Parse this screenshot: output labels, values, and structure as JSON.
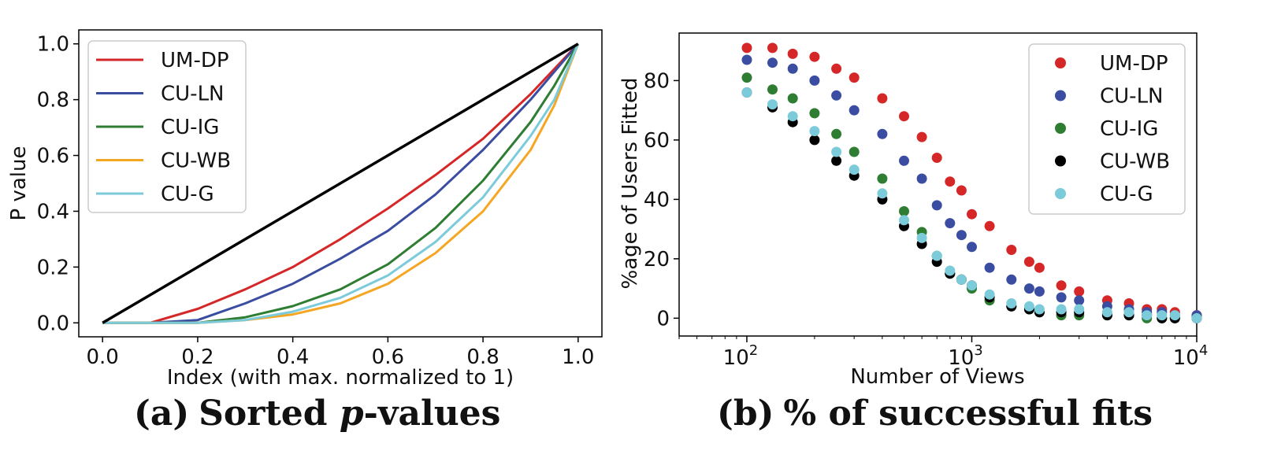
{
  "chart_data": [
    {
      "type": "line",
      "caption": {
        "tag": "(a)",
        "pre": "Sorted ",
        "var": "p",
        "post": "-values"
      },
      "xlabel": "Index (with max. normalized to 1)",
      "ylabel": "P value",
      "xlim": [
        -0.05,
        1.05
      ],
      "ylim": [
        -0.05,
        1.05
      ],
      "xticks": [
        "0.0",
        "0.2",
        "0.4",
        "0.6",
        "0.8",
        "1.0"
      ],
      "yticks": [
        "0.0",
        "0.2",
        "0.4",
        "0.6",
        "0.8",
        "1.0"
      ],
      "legend": "top-left",
      "series": [
        {
          "name": "UM-DP",
          "color": "#d62728",
          "x": [
            0,
            0.1,
            0.2,
            0.3,
            0.4,
            0.5,
            0.6,
            0.7,
            0.8,
            0.9,
            0.95,
            1.0
          ],
          "values": [
            0,
            0,
            0.05,
            0.12,
            0.2,
            0.3,
            0.41,
            0.53,
            0.66,
            0.82,
            0.91,
            1.0
          ]
        },
        {
          "name": "CU-LN",
          "color": "#3a4da0",
          "x": [
            0,
            0.1,
            0.2,
            0.3,
            0.4,
            0.5,
            0.6,
            0.7,
            0.8,
            0.9,
            0.95,
            1.0
          ],
          "values": [
            0,
            0,
            0.01,
            0.07,
            0.14,
            0.23,
            0.33,
            0.46,
            0.62,
            0.8,
            0.9,
            1.0
          ]
        },
        {
          "name": "CU-IG",
          "color": "#2e7d32",
          "x": [
            0,
            0.1,
            0.2,
            0.3,
            0.4,
            0.5,
            0.6,
            0.7,
            0.8,
            0.9,
            0.95,
            1.0
          ],
          "values": [
            0,
            0,
            0,
            0.02,
            0.06,
            0.12,
            0.21,
            0.34,
            0.51,
            0.72,
            0.85,
            1.0
          ]
        },
        {
          "name": "CU-WB",
          "color": "#f5a623",
          "x": [
            0,
            0.1,
            0.2,
            0.3,
            0.4,
            0.5,
            0.6,
            0.7,
            0.8,
            0.9,
            0.95,
            1.0
          ],
          "values": [
            0,
            0,
            0,
            0.01,
            0.03,
            0.07,
            0.14,
            0.25,
            0.4,
            0.62,
            0.78,
            1.0
          ]
        },
        {
          "name": "CU-G",
          "color": "#7ccbdb",
          "x": [
            0,
            0.1,
            0.2,
            0.3,
            0.4,
            0.5,
            0.6,
            0.7,
            0.8,
            0.9,
            0.95,
            1.0
          ],
          "values": [
            0,
            0,
            0,
            0.01,
            0.04,
            0.09,
            0.17,
            0.29,
            0.45,
            0.67,
            0.8,
            1.0
          ]
        },
        {
          "name": "",
          "color": "#000000",
          "x": [
            0,
            1.0
          ],
          "values": [
            0,
            1.0
          ]
        }
      ]
    },
    {
      "type": "scatter",
      "caption": {
        "tag": "(b)",
        "text": "% of successful fits"
      },
      "xlabel": "Number of Views",
      "ylabel": "%age of Users Fitted",
      "xscale": "log",
      "xlim": [
        50,
        10000
      ],
      "ylim": [
        -6,
        96
      ],
      "xticks": [
        {
          "base": "10",
          "exp": "2",
          "value": 100
        },
        {
          "base": "10",
          "exp": "3",
          "value": 1000
        },
        {
          "base": "10",
          "exp": "4",
          "value": 10000
        }
      ],
      "yticks": [
        "0",
        "20",
        "40",
        "60",
        "80"
      ],
      "legend": "top-right",
      "series": [
        {
          "name": "UM-DP",
          "color": "#d62728",
          "x": [
            100,
            130,
            160,
            200,
            250,
            300,
            400,
            500,
            600,
            700,
            800,
            900,
            1000,
            1200,
            1500,
            1800,
            2000,
            2500,
            3000,
            4000,
            5000,
            6000,
            7000,
            8000,
            10000
          ],
          "values": [
            91,
            91,
            89,
            88,
            84,
            81,
            74,
            68,
            61,
            54,
            46,
            43,
            35,
            31,
            23,
            19,
            17,
            11,
            9,
            6,
            5,
            3,
            3,
            2,
            1
          ]
        },
        {
          "name": "CU-LN",
          "color": "#3a4da0",
          "x": [
            100,
            130,
            160,
            200,
            250,
            300,
            400,
            500,
            600,
            700,
            800,
            900,
            1000,
            1200,
            1500,
            1800,
            2000,
            2500,
            3000,
            4000,
            5000,
            6000,
            7000,
            8000,
            10000
          ],
          "values": [
            87,
            86,
            84,
            80,
            75,
            70,
            62,
            53,
            47,
            38,
            32,
            28,
            24,
            17,
            13,
            10,
            9,
            7,
            6,
            4,
            3,
            2,
            2,
            1,
            1
          ]
        },
        {
          "name": "CU-IG",
          "color": "#2e7d32",
          "x": [
            100,
            130,
            160,
            200,
            250,
            300,
            400,
            500,
            600,
            700,
            800,
            900,
            1000,
            1200,
            1500,
            1800,
            2000,
            2500,
            3000,
            4000,
            5000,
            6000,
            7000,
            8000,
            10000
          ],
          "values": [
            81,
            77,
            74,
            69,
            62,
            56,
            47,
            36,
            29,
            21,
            15,
            13,
            10,
            6,
            4,
            3,
            2,
            1,
            1,
            1,
            1,
            0,
            0,
            0,
            0
          ]
        },
        {
          "name": "CU-WB",
          "color": "#000000",
          "x": [
            100,
            130,
            160,
            200,
            250,
            300,
            400,
            500,
            600,
            700,
            800,
            900,
            1000,
            1200,
            1500,
            1800,
            2000,
            2500,
            3000,
            4000,
            5000,
            6000,
            7000,
            8000,
            10000
          ],
          "values": [
            76,
            71,
            66,
            60,
            53,
            48,
            40,
            31,
            25,
            19,
            15,
            13,
            11,
            7,
            4,
            3,
            2,
            2,
            2,
            1,
            1,
            1,
            0,
            0,
            0
          ]
        },
        {
          "name": "CU-G",
          "color": "#7ccbdb",
          "x": [
            100,
            130,
            160,
            200,
            250,
            300,
            400,
            500,
            600,
            700,
            800,
            900,
            1000,
            1200,
            1500,
            1800,
            2000,
            2500,
            3000,
            4000,
            5000,
            6000,
            7000,
            8000,
            10000
          ],
          "values": [
            76,
            72,
            68,
            63,
            56,
            50,
            42,
            33,
            27,
            21,
            16,
            13,
            11,
            8,
            5,
            4,
            3,
            3,
            3,
            2,
            2,
            1,
            1,
            1,
            0
          ]
        }
      ]
    }
  ]
}
